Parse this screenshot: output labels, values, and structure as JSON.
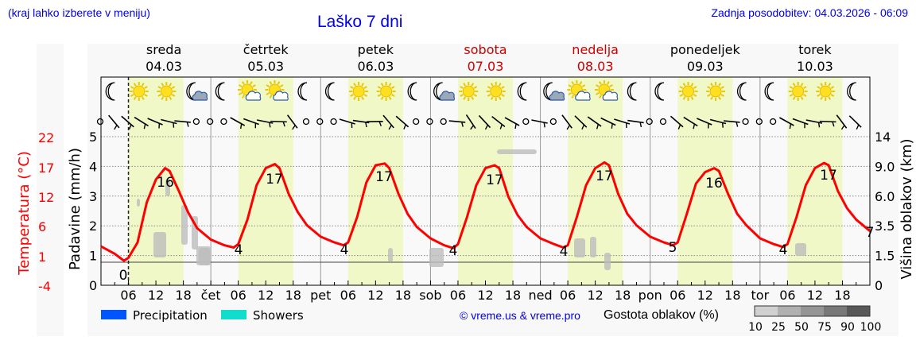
{
  "header": {
    "region_hint": "(kraj lahko izberete v meniju)",
    "title": "Laško 7 dni",
    "last_update": "Zadnja posodobitev: 04.03.2026 - 06:09"
  },
  "days": [
    {
      "name": "sreda",
      "date": "04.03",
      "weekend": false,
      "abbr": ""
    },
    {
      "name": "četrtek",
      "date": "05.03",
      "weekend": false,
      "abbr": "čet"
    },
    {
      "name": "petek",
      "date": "06.03",
      "weekend": false,
      "abbr": "pet"
    },
    {
      "name": "sobota",
      "date": "07.03",
      "weekend": true,
      "abbr": "sob"
    },
    {
      "name": "nedelja",
      "date": "08.03",
      "weekend": true,
      "abbr": "ned"
    },
    {
      "name": "ponedeljek",
      "date": "09.03",
      "weekend": false,
      "abbr": "pon"
    },
    {
      "name": "torek",
      "date": "10.03",
      "weekend": false,
      "abbr": "tor"
    }
  ],
  "icons": [
    [
      "moon",
      "sun",
      "sun",
      "moon-cloud"
    ],
    [
      "moon",
      "sun-cloud",
      "sun-cloud",
      "moon"
    ],
    [
      "moon",
      "sun",
      "sun",
      "moon"
    ],
    [
      "moon-cloud",
      "sun",
      "sun",
      "moon"
    ],
    [
      "moon-cloud",
      "sun-cloud",
      "sun-cloud",
      "moon"
    ],
    [
      "moon",
      "sun",
      "sun",
      "moon"
    ],
    [
      "moon",
      "sun",
      "sun",
      "moon"
    ]
  ],
  "axes": {
    "left_temp_label": "Temperatura (°C)",
    "left_temp_ticks": [
      "22",
      "17",
      "12",
      "6",
      "1",
      "-4"
    ],
    "left_precip_label": "Padavine (mm/h)",
    "left_precip_ticks": [
      "5",
      "4",
      "3",
      "2",
      "1",
      "0"
    ],
    "right_label": "Višina oblakov (km)",
    "right_ticks": [
      "14",
      "9.0",
      "6.0",
      "3.5",
      "1.5",
      "0"
    ],
    "hour_ticks": [
      "06",
      "12",
      "18"
    ]
  },
  "legend": {
    "items": [
      {
        "label": "Precipitation",
        "color": "#0055ff"
      },
      {
        "label": "Showers",
        "color": "#11ddcc"
      }
    ],
    "copyright": "© vreme.us & vreme.pro",
    "cloud_density_label": "Gostota oblakov (%)",
    "cloud_density_scale": [
      "10",
      "25",
      "50",
      "75",
      "90",
      "100"
    ],
    "cloud_density_colors": [
      "#d0d0d0",
      "#b0b0b0",
      "#959595",
      "#787878",
      "#585858"
    ]
  },
  "colors": {
    "temp_line": "#ff0000",
    "day_shade": "#f0f8c8",
    "weekend_text": "#cc0000",
    "link_blue": "#0000ee",
    "panel_bg": "#f8f8f8"
  },
  "chart_data": {
    "type": "line",
    "title": "Laško 7 dni",
    "xlabel": "",
    "ylabel": "Temperatura (°C)",
    "ylim": [
      -4,
      22
    ],
    "x_start": "04.03 00:00",
    "x_end": "10.03 24:00",
    "current_time_marker": "04.03 06:00",
    "temperature_series": {
      "name": "Temperatura (°C)",
      "points_hours": [
        0,
        3,
        5,
        6,
        8,
        10,
        12,
        14,
        15,
        17,
        19,
        21,
        24,
        27,
        29,
        30,
        32,
        34,
        36,
        38,
        39,
        41,
        43,
        45,
        48,
        51,
        53,
        54,
        56,
        58,
        60,
        62,
        63,
        65,
        67,
        69,
        72,
        75,
        77,
        78,
        80,
        82,
        84,
        86,
        87,
        89,
        91,
        93,
        96,
        99,
        101,
        102,
        104,
        106,
        108,
        110,
        111,
        113,
        115,
        117,
        120,
        123,
        125,
        126,
        128,
        130,
        132,
        134,
        135,
        137,
        139,
        141,
        144,
        147,
        149,
        150,
        152,
        154,
        156,
        158,
        159,
        161,
        163,
        165,
        168
      ],
      "values": [
        2.8,
        1.5,
        0.3,
        0.8,
        3.5,
        10.5,
        14.5,
        16.5,
        16.0,
        12.5,
        8.8,
        6.0,
        4.0,
        3.0,
        2.6,
        3.2,
        7.5,
        13.5,
        16.5,
        17.2,
        16.5,
        12.0,
        8.8,
        6.5,
        4.5,
        3.5,
        3.0,
        3.5,
        8.0,
        14.0,
        17.0,
        17.3,
        16.5,
        12.0,
        8.5,
        6.2,
        4.2,
        3.0,
        2.5,
        3.2,
        8.0,
        13.5,
        16.5,
        17.0,
        16.5,
        11.5,
        8.3,
        6.2,
        4.2,
        3.2,
        2.6,
        3.0,
        8.0,
        13.5,
        16.5,
        17.5,
        17.0,
        12.0,
        8.5,
        6.5,
        4.5,
        3.5,
        3.0,
        3.5,
        8.5,
        13.8,
        15.8,
        16.5,
        16.0,
        12.0,
        8.5,
        6.5,
        4.2,
        3.2,
        2.7,
        3.2,
        8.0,
        13.5,
        16.5,
        17.4,
        17.0,
        12.5,
        9.5,
        7.5,
        5.5
      ]
    },
    "daily_annotations": [
      {
        "day": "04.03",
        "min": 0,
        "max": 16
      },
      {
        "day": "05.03",
        "min": 4,
        "max": 17
      },
      {
        "day": "06.03",
        "min": 4,
        "max": 17
      },
      {
        "day": "07.03",
        "min": 4,
        "max": 17
      },
      {
        "day": "08.03",
        "min": 4,
        "max": 17
      },
      {
        "day": "09.03",
        "min": 5,
        "max": 16
      },
      {
        "day": "10.03",
        "min": 4,
        "max": 17
      },
      {
        "day": "end",
        "min": 7,
        "max": null
      }
    ],
    "precipitation": {
      "values": "none visible (0 mm/h)"
    },
    "secondary_axes": {
      "precip_ylim": [
        0,
        5
      ],
      "cloud_height_km_ticks": [
        0,
        1.5,
        3.5,
        6.0,
        9.0,
        14
      ]
    },
    "grid": true,
    "legend_position": "bottom"
  }
}
